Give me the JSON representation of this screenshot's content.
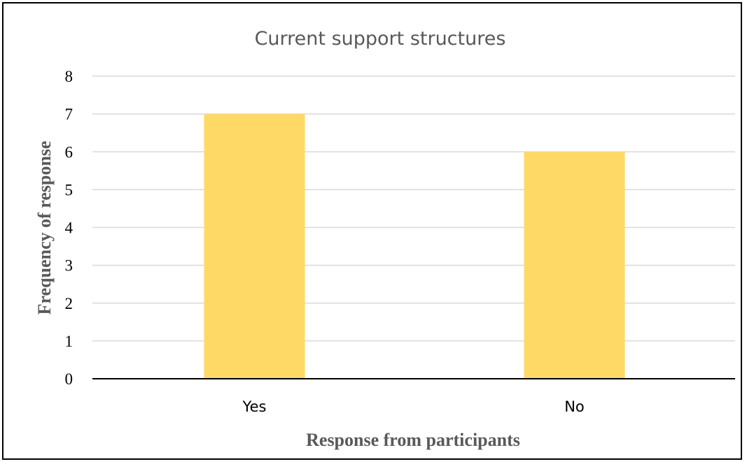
{
  "chart_data": {
    "type": "bar",
    "title": "Current support structures",
    "categories": [
      "Yes",
      "No"
    ],
    "values": [
      7,
      6
    ],
    "xlabel": "Response from participants",
    "ylabel": "Frequency of response",
    "ylim": [
      0,
      8
    ],
    "yticks": [
      "0",
      "1",
      "2",
      "3",
      "4",
      "5",
      "6",
      "7",
      "8"
    ],
    "grid": true,
    "legend": "none",
    "colors": {
      "bar": "#FFD966",
      "grid": "#D9D9D9",
      "axis": "#000000",
      "label": "#595959"
    }
  }
}
